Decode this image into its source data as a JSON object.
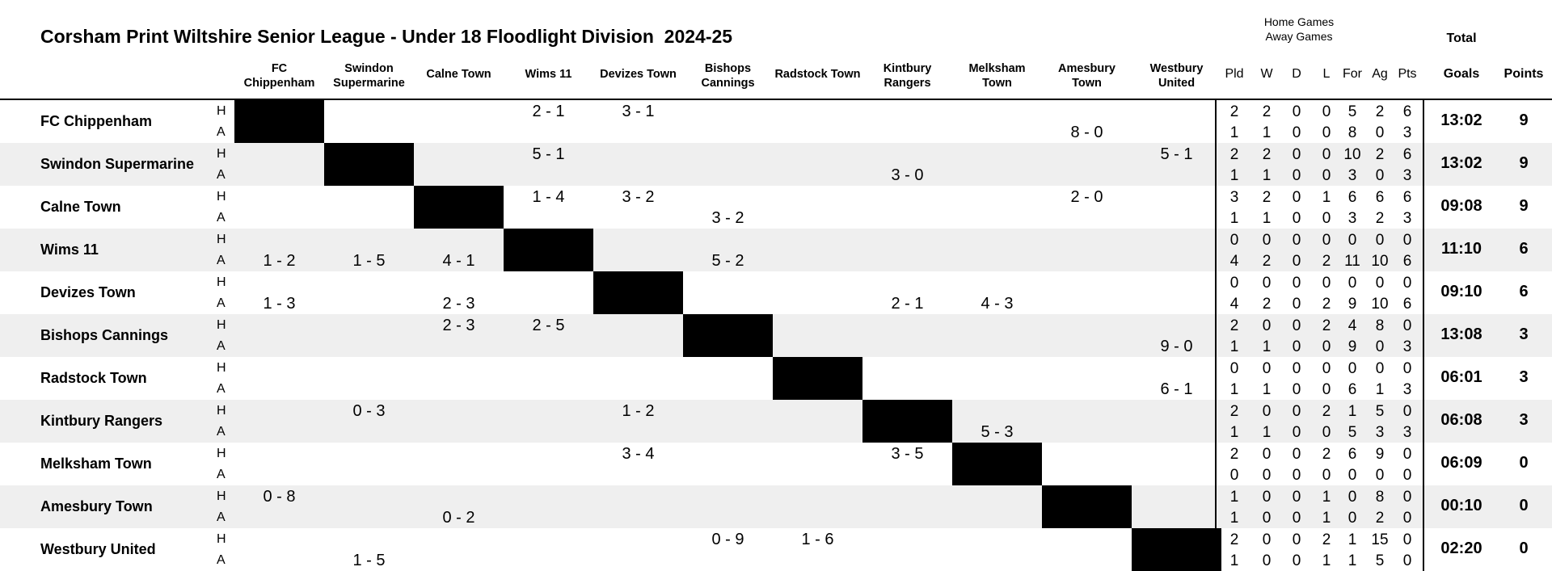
{
  "title": "Corsham Print Wiltshire Senior League - Under 18 Floodlight Division  2024-25",
  "legend": {
    "home": "Home Games",
    "away": "Away Games",
    "total": "Total"
  },
  "columns": [
    {
      "line1": "FC",
      "line2": "Chippenham"
    },
    {
      "line1": "Swindon",
      "line2": "Supermarine"
    },
    {
      "line1": "Calne Town",
      "line2": ""
    },
    {
      "line1": "Wims 11",
      "line2": ""
    },
    {
      "line1": "Devizes Town",
      "line2": ""
    },
    {
      "line1": "Bishops",
      "line2": "Cannings"
    },
    {
      "line1": "Radstock Town",
      "line2": ""
    },
    {
      "line1": "Kintbury",
      "line2": "Rangers"
    },
    {
      "line1": "Melksham",
      "line2": "Town"
    },
    {
      "line1": "Amesbury",
      "line2": "Town"
    },
    {
      "line1": "Westbury",
      "line2": "United"
    }
  ],
  "stat_headers": [
    "Pld",
    "W",
    "D",
    "L",
    "For",
    "Ag",
    "Pts"
  ],
  "goals_header": "Goals",
  "points_header": "Points",
  "ha_labels": {
    "home": "H",
    "away": "A"
  },
  "teams": [
    {
      "name": "FC Chippenham",
      "home": [
        "",
        "",
        "",
        "2 - 1",
        "3 - 1",
        "",
        "",
        "",
        "",
        "",
        ""
      ],
      "away": [
        "",
        "",
        "",
        "",
        "",
        "",
        "",
        "",
        "",
        "8 - 0",
        ""
      ],
      "home_stats": [
        "2",
        "2",
        "0",
        "0",
        "5",
        "2",
        "6"
      ],
      "away_stats": [
        "1",
        "1",
        "0",
        "0",
        "8",
        "0",
        "3"
      ],
      "goals": "13:02",
      "points": "9"
    },
    {
      "name": "Swindon Supermarine",
      "home": [
        "",
        "",
        "",
        "5 - 1",
        "",
        "",
        "",
        "",
        "",
        "",
        "5 - 1"
      ],
      "away": [
        "",
        "",
        "",
        "",
        "",
        "",
        "",
        "3 - 0",
        "",
        "",
        ""
      ],
      "home_stats": [
        "2",
        "2",
        "0",
        "0",
        "10",
        "2",
        "6"
      ],
      "away_stats": [
        "1",
        "1",
        "0",
        "0",
        "3",
        "0",
        "3"
      ],
      "goals": "13:02",
      "points": "9"
    },
    {
      "name": "Calne Town",
      "home": [
        "",
        "",
        "",
        "1 - 4",
        "3 - 2",
        "",
        "",
        "",
        "",
        "2 - 0",
        ""
      ],
      "away": [
        "",
        "",
        "",
        "",
        "",
        "3 - 2",
        "",
        "",
        "",
        "",
        ""
      ],
      "home_stats": [
        "3",
        "2",
        "0",
        "1",
        "6",
        "6",
        "6"
      ],
      "away_stats": [
        "1",
        "1",
        "0",
        "0",
        "3",
        "2",
        "3"
      ],
      "goals": "09:08",
      "points": "9"
    },
    {
      "name": "Wims 11",
      "home": [
        "",
        "",
        "",
        "",
        "",
        "",
        "",
        "",
        "",
        "",
        ""
      ],
      "away": [
        "1 - 2",
        "1 - 5",
        "4 - 1",
        "",
        "",
        "5 - 2",
        "",
        "",
        "",
        "",
        ""
      ],
      "home_stats": [
        "0",
        "0",
        "0",
        "0",
        "0",
        "0",
        "0"
      ],
      "away_stats": [
        "4",
        "2",
        "0",
        "2",
        "11",
        "10",
        "6"
      ],
      "goals": "11:10",
      "points": "6"
    },
    {
      "name": "Devizes Town",
      "home": [
        "",
        "",
        "",
        "",
        "",
        "",
        "",
        "",
        "",
        "",
        ""
      ],
      "away": [
        "1 - 3",
        "",
        "2 - 3",
        "",
        "",
        "",
        "",
        "2 - 1",
        "4 - 3",
        "",
        ""
      ],
      "home_stats": [
        "0",
        "0",
        "0",
        "0",
        "0",
        "0",
        "0"
      ],
      "away_stats": [
        "4",
        "2",
        "0",
        "2",
        "9",
        "10",
        "6"
      ],
      "goals": "09:10",
      "points": "6"
    },
    {
      "name": "Bishops Cannings",
      "home": [
        "",
        "",
        "2 - 3",
        "2 - 5",
        "",
        "",
        "",
        "",
        "",
        "",
        ""
      ],
      "away": [
        "",
        "",
        "",
        "",
        "",
        "",
        "",
        "",
        "",
        "",
        "9 - 0"
      ],
      "home_stats": [
        "2",
        "0",
        "0",
        "2",
        "4",
        "8",
        "0"
      ],
      "away_stats": [
        "1",
        "1",
        "0",
        "0",
        "9",
        "0",
        "3"
      ],
      "goals": "13:08",
      "points": "3"
    },
    {
      "name": "Radstock Town",
      "home": [
        "",
        "",
        "",
        "",
        "",
        "",
        "",
        "",
        "",
        "",
        ""
      ],
      "away": [
        "",
        "",
        "",
        "",
        "",
        "",
        "",
        "",
        "",
        "",
        "6 - 1"
      ],
      "home_stats": [
        "0",
        "0",
        "0",
        "0",
        "0",
        "0",
        "0"
      ],
      "away_stats": [
        "1",
        "1",
        "0",
        "0",
        "6",
        "1",
        "3"
      ],
      "goals": "06:01",
      "points": "3"
    },
    {
      "name": "Kintbury Rangers",
      "home": [
        "",
        "0 - 3",
        "",
        "",
        "1 - 2",
        "",
        "",
        "",
        "",
        "",
        ""
      ],
      "away": [
        "",
        "",
        "",
        "",
        "",
        "",
        "",
        "",
        "5 - 3",
        "",
        ""
      ],
      "home_stats": [
        "2",
        "0",
        "0",
        "2",
        "1",
        "5",
        "0"
      ],
      "away_stats": [
        "1",
        "1",
        "0",
        "0",
        "5",
        "3",
        "3"
      ],
      "goals": "06:08",
      "points": "3"
    },
    {
      "name": "Melksham Town",
      "home": [
        "",
        "",
        "",
        "",
        "3 - 4",
        "",
        "",
        "3 - 5",
        "",
        "",
        ""
      ],
      "away": [
        "",
        "",
        "",
        "",
        "",
        "",
        "",
        "",
        "",
        "",
        ""
      ],
      "home_stats": [
        "2",
        "0",
        "0",
        "2",
        "6",
        "9",
        "0"
      ],
      "away_stats": [
        "0",
        "0",
        "0",
        "0",
        "0",
        "0",
        "0"
      ],
      "goals": "06:09",
      "points": "0"
    },
    {
      "name": "Amesbury Town",
      "home": [
        "0 - 8",
        "",
        "",
        "",
        "",
        "",
        "",
        "",
        "",
        "",
        ""
      ],
      "away": [
        "",
        "",
        "0 - 2",
        "",
        "",
        "",
        "",
        "",
        "",
        "",
        ""
      ],
      "home_stats": [
        "1",
        "0",
        "0",
        "1",
        "0",
        "8",
        "0"
      ],
      "away_stats": [
        "1",
        "0",
        "0",
        "1",
        "0",
        "2",
        "0"
      ],
      "goals": "00:10",
      "points": "0"
    },
    {
      "name": "Westbury United",
      "home": [
        "",
        "",
        "",
        "",
        "",
        "0 - 9",
        "1 - 6",
        "",
        "",
        "",
        ""
      ],
      "away": [
        "",
        "1 - 5",
        "",
        "",
        "",
        "",
        "",
        "",
        "",
        "",
        ""
      ],
      "home_stats": [
        "2",
        "0",
        "0",
        "2",
        "1",
        "15",
        "0"
      ],
      "away_stats": [
        "1",
        "0",
        "0",
        "1",
        "1",
        "5",
        "0"
      ],
      "goals": "02:20",
      "points": "0"
    }
  ]
}
